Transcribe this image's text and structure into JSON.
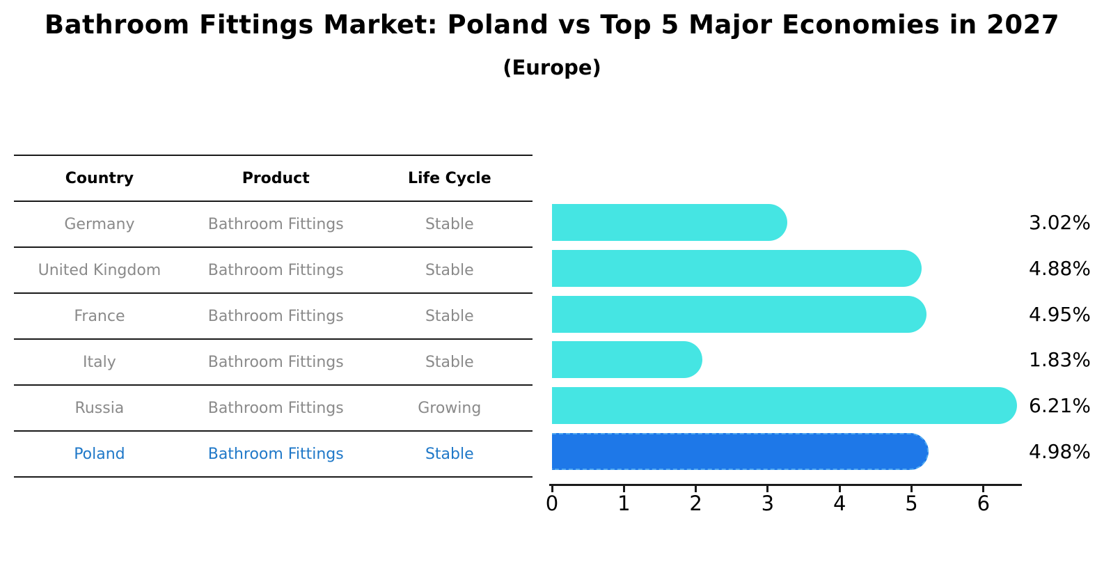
{
  "title": "Bathroom Fittings Market: Poland vs Top 5 Major Economies in 2027",
  "subtitle": "(Europe)",
  "table": {
    "headers": [
      "Country",
      "Product",
      "Life Cycle"
    ],
    "rows": [
      {
        "country": "Germany",
        "product": "Bathroom Fittings",
        "life_cycle": "Stable",
        "highlighted": false
      },
      {
        "country": "United Kingdom",
        "product": "Bathroom Fittings",
        "life_cycle": "Stable",
        "highlighted": false
      },
      {
        "country": "France",
        "product": "Bathroom Fittings",
        "life_cycle": "Stable",
        "highlighted": false
      },
      {
        "country": "Italy",
        "product": "Bathroom Fittings",
        "life_cycle": "Stable",
        "highlighted": false
      },
      {
        "country": "Russia",
        "product": "Bathroom Fittings",
        "life_cycle": "Growing",
        "highlighted": false
      },
      {
        "country": "Poland",
        "product": "Bathroom Fittings",
        "life_cycle": "Stable",
        "highlighted": true
      }
    ]
  },
  "chart_data": {
    "type": "bar",
    "orientation": "horizontal",
    "title": "Bathroom Fittings Market: Poland vs Top 5 Major Economies in 2027 (Europe)",
    "categories": [
      "Germany",
      "United Kingdom",
      "France",
      "Italy",
      "Russia",
      "Poland"
    ],
    "values": [
      3.02,
      4.88,
      4.95,
      1.83,
      6.21,
      4.98
    ],
    "value_labels": [
      "3.02%",
      "4.88%",
      "4.95%",
      "1.83%",
      "6.21%",
      "4.98%"
    ],
    "xlabel": "",
    "ylabel": "",
    "xlim": [
      0,
      6.5
    ],
    "xticks": [
      0,
      1,
      2,
      3,
      4,
      5,
      6
    ],
    "grid": false,
    "legend": null,
    "bar_color": "#45e5e3",
    "highlight_index": 5,
    "highlight_color": "#1e78e8",
    "highlight_edge_color": "#4fa8f0",
    "highlight_text_color": "#1f78c8"
  }
}
